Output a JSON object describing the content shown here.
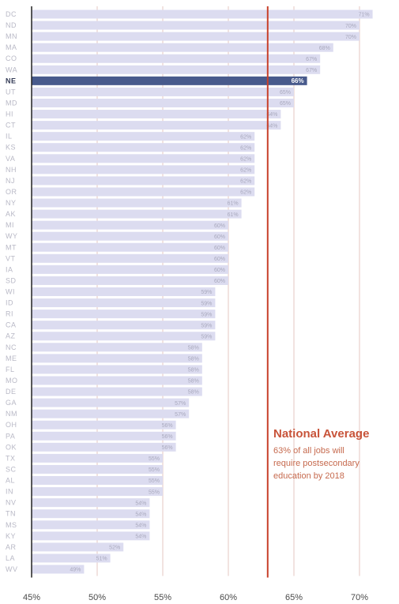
{
  "chart_data": {
    "type": "bar",
    "orientation": "horizontal",
    "categories": [
      "DC",
      "ND",
      "MN",
      "MA",
      "CO",
      "WA",
      "NE",
      "UT",
      "MD",
      "HI",
      "CT",
      "IL",
      "KS",
      "VA",
      "NH",
      "NJ",
      "OR",
      "NY",
      "AK",
      "MI",
      "WY",
      "MT",
      "VT",
      "IA",
      "SD",
      "WI",
      "ID",
      "RI",
      "CA",
      "AZ",
      "NC",
      "ME",
      "FL",
      "MO",
      "DE",
      "GA",
      "NM",
      "OH",
      "PA",
      "OK",
      "TX",
      "SC",
      "AL",
      "IN",
      "NV",
      "TN",
      "MS",
      "KY",
      "AR",
      "LA",
      "WV"
    ],
    "values": [
      71,
      70,
      70,
      68,
      67,
      67,
      66,
      65,
      65,
      64,
      64,
      62,
      62,
      62,
      62,
      62,
      62,
      61,
      61,
      60,
      60,
      60,
      60,
      60,
      60,
      59,
      59,
      59,
      59,
      59,
      58,
      58,
      58,
      58,
      58,
      57,
      57,
      56,
      56,
      56,
      55,
      55,
      55,
      55,
      54,
      54,
      54,
      54,
      52,
      51,
      49
    ],
    "value_labels": [
      "71%",
      "70%",
      "70%",
      "68%",
      "67%",
      "67%",
      "66%",
      "65%",
      "65%",
      "64%",
      "64%",
      "62%",
      "62%",
      "62%",
      "62%",
      "62%",
      "62%",
      "61%",
      "61%",
      "60%",
      "60%",
      "60%",
      "60%",
      "60%",
      "60%",
      "59%",
      "59%",
      "59%",
      "59%",
      "59%",
      "58%",
      "58%",
      "58%",
      "58%",
      "58%",
      "57%",
      "57%",
      "56%",
      "56%",
      "56%",
      "55%",
      "55%",
      "55%",
      "55%",
      "54%",
      "54%",
      "54%",
      "54%",
      "52%",
      "51%",
      "49%"
    ],
    "highlight": "NE",
    "xlim": [
      45,
      72
    ],
    "ticks": [
      45,
      50,
      55,
      60,
      65,
      70
    ],
    "tick_labels": [
      "45%",
      "50%",
      "55%",
      "60%",
      "65%",
      "70%"
    ],
    "reference_value": 63,
    "bar_color": "#dcdcf0",
    "highlight_color": "#485a8c",
    "reference_color": "#c8402a",
    "grid_color": "#e4c7c2",
    "annotation": {
      "title": "National Average",
      "lines": [
        "63% of all jobs will",
        "require postsecondary",
        "education by 2018"
      ]
    }
  }
}
